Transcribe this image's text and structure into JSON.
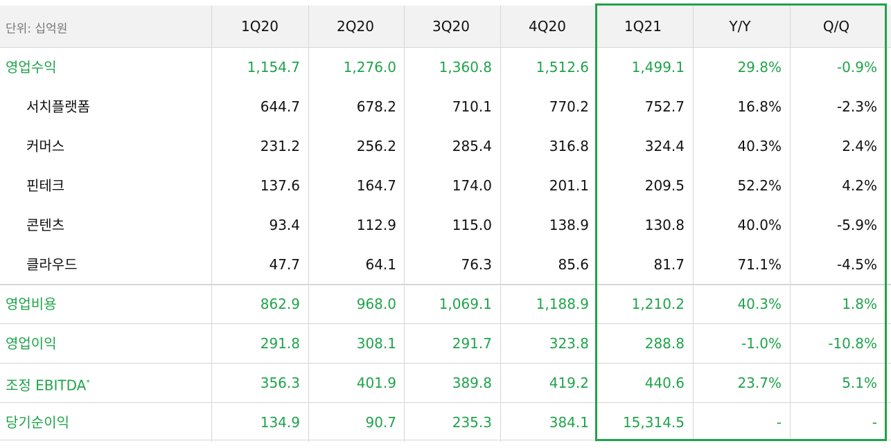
{
  "header": {
    "unit": "단위: 십억원",
    "columns": [
      "1Q20",
      "2Q20",
      "3Q20",
      "4Q20",
      "1Q21",
      "Y/Y",
      "Q/Q"
    ]
  },
  "highlight_color": "#1fa34a",
  "rows": [
    {
      "label": "영업수익",
      "color": "#1fa34a",
      "values": [
        "1,154.7",
        "1,276.0",
        "1,360.8",
        "1,512.6",
        "1,499.1",
        "29.8%",
        "-0.9%"
      ],
      "items": [
        {
          "label": "서치플랫폼",
          "values": [
            "644.7",
            "678.2",
            "710.1",
            "770.2",
            "752.7",
            "16.8%",
            "-2.3%"
          ]
        },
        {
          "label": "커머스",
          "values": [
            "231.2",
            "256.2",
            "285.4",
            "316.8",
            "324.4",
            "40.3%",
            "2.4%"
          ]
        },
        {
          "label": "핀테크",
          "values": [
            "137.6",
            "164.7",
            "174.0",
            "201.1",
            "209.5",
            "52.2%",
            "4.2%"
          ]
        },
        {
          "label": "콘텐츠",
          "values": [
            "93.4",
            "112.9",
            "115.0",
            "138.9",
            "130.8",
            "40.0%",
            "-5.9%"
          ]
        },
        {
          "label": "클라우드",
          "values": [
            "47.7",
            "64.1",
            "76.3",
            "85.6",
            "81.7",
            "71.1%",
            "-4.5%"
          ]
        }
      ]
    },
    {
      "label": "영업비용",
      "color": "#1fa34a",
      "values": [
        "862.9",
        "968.0",
        "1,069.1",
        "1,188.9",
        "1,210.2",
        "40.3%",
        "1.8%"
      ]
    },
    {
      "label": "영업이익",
      "color": "#1fa34a",
      "values": [
        "291.8",
        "308.1",
        "291.7",
        "323.8",
        "288.8",
        "-1.0%",
        "-10.8%"
      ]
    },
    {
      "label": "조정 EBITDA",
      "label_mark": "*",
      "color": "#1fa34a",
      "values": [
        "356.3",
        "401.9",
        "389.8",
        "419.2",
        "440.6",
        "23.7%",
        "5.1%"
      ]
    },
    {
      "label": "당기순이익",
      "color": "#1fa34a",
      "values": [
        "134.9",
        "90.7",
        "235.3",
        "384.1",
        "15,314.5",
        "-",
        "-"
      ]
    }
  ]
}
